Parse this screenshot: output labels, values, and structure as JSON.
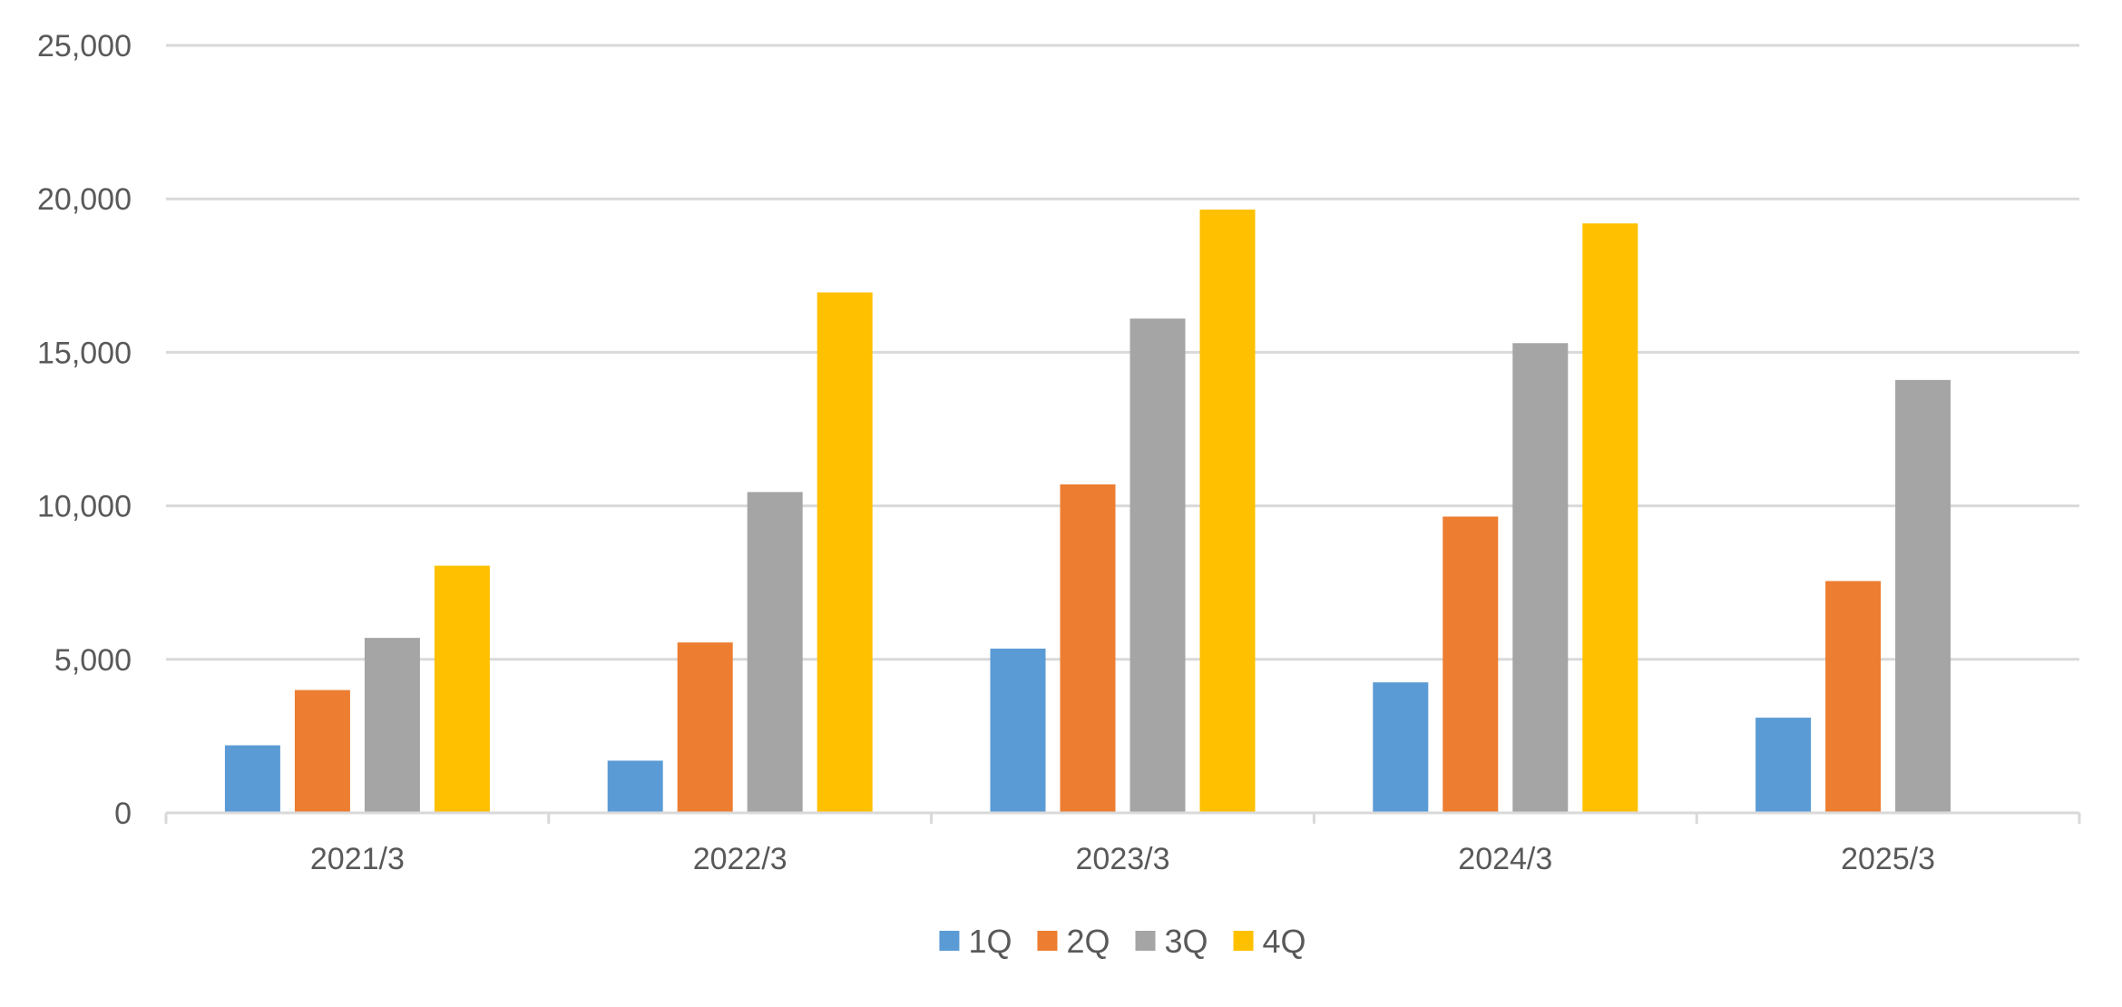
{
  "chart_data": {
    "type": "bar",
    "title": "",
    "xlabel": "",
    "ylabel": "",
    "categories": [
      "2021/3",
      "2022/3",
      "2023/3",
      "2024/3",
      "2025/3"
    ],
    "series": [
      {
        "name": "1Q",
        "color": "#5B9BD5",
        "values": [
          2200,
          1700,
          5350,
          4250,
          3100
        ]
      },
      {
        "name": "2Q",
        "color": "#ED7D31",
        "values": [
          4000,
          5550,
          10700,
          9650,
          7550
        ]
      },
      {
        "name": "3Q",
        "color": "#A5A5A5",
        "values": [
          5700,
          10450,
          16100,
          15300,
          14100
        ]
      },
      {
        "name": "4Q",
        "color": "#FFC000",
        "values": [
          8050,
          16950,
          19650,
          19200,
          null
        ]
      }
    ],
    "ylim": [
      0,
      25000
    ],
    "yticks": [
      0,
      5000,
      10000,
      15000,
      20000,
      25000
    ],
    "ytick_labels": [
      "0",
      "5,000",
      "10,000",
      "15,000",
      "20,000",
      "25,000"
    ],
    "grid": true,
    "legend_position": "bottom-center"
  }
}
